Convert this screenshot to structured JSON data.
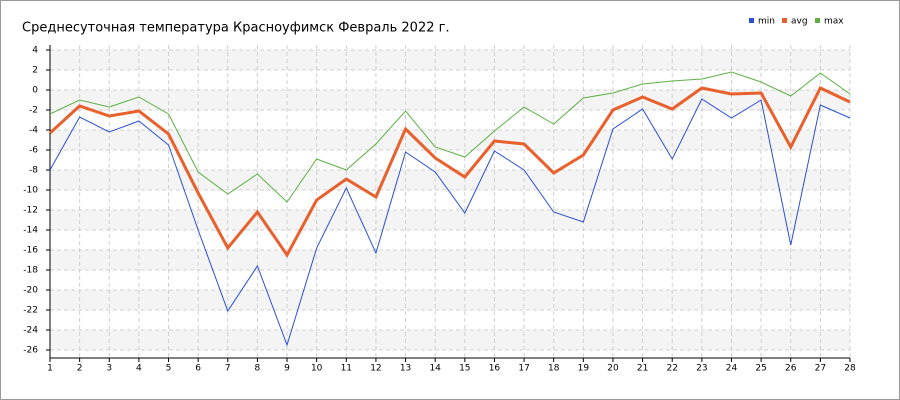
{
  "chart_data": {
    "type": "line",
    "title": "Среднесуточная температура Красноуфимск  Февраль 2022 г.",
    "categories": [
      1,
      2,
      3,
      4,
      5,
      6,
      7,
      8,
      9,
      10,
      11,
      12,
      13,
      14,
      15,
      16,
      17,
      18,
      19,
      20,
      21,
      22,
      23,
      24,
      25,
      26,
      27,
      28
    ],
    "series": [
      {
        "name": "min",
        "color": "#2b4fd4",
        "values": [
          -8,
          -2.7,
          -4.2,
          -3.1,
          -5.5,
          -14,
          -22.1,
          -17.6,
          -25.5,
          -15.8,
          -9.8,
          -16.3,
          -6.2,
          -8.2,
          -12.3,
          -6.1,
          -8,
          -12.2,
          -13.2,
          -3.9,
          -1.9,
          -6.9,
          -0.9,
          -2.8,
          -1,
          -15.5,
          -1.5,
          -2.8
        ]
      },
      {
        "name": "avg",
        "color": "#e8602c",
        "values": [
          -4.3,
          -1.6,
          -2.6,
          -2.1,
          -4.4,
          -10.3,
          -15.8,
          -12.2,
          -16.5,
          -11,
          -8.9,
          -10.7,
          -3.9,
          -6.8,
          -8.7,
          -5.1,
          -5.4,
          -8.3,
          -6.5,
          -2,
          -0.7,
          -1.9,
          0.2,
          -0.4,
          -0.3,
          -5.7,
          0.2,
          -1.2
        ]
      },
      {
        "name": "max",
        "color": "#5cb044",
        "values": [
          -2.4,
          -1,
          -1.7,
          -0.7,
          -2.4,
          -8.2,
          -10.4,
          -8.4,
          -11.2,
          -6.9,
          -8,
          -5.4,
          -2.1,
          -5.7,
          -6.7,
          -4.1,
          -1.7,
          -3.4,
          -0.8,
          -0.3,
          0.6,
          0.9,
          1.1,
          1.8,
          0.8,
          -0.6,
          1.7,
          -0.4
        ]
      }
    ],
    "ylim": [
      -26.8,
      4.5
    ],
    "yticks": [
      4,
      2,
      0,
      -2,
      -4,
      -6,
      -8,
      -10,
      -12,
      -14,
      -16,
      -18,
      -20,
      -22,
      -24,
      -26
    ],
    "grid": true
  }
}
